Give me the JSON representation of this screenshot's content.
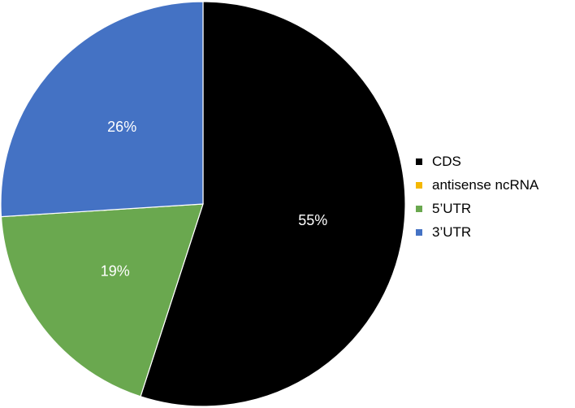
{
  "chart_data": {
    "type": "pie",
    "title": "",
    "categories": [
      "CDS",
      "antisense ncRNA",
      "5’UTR",
      "3’UTR"
    ],
    "values": [
      55,
      0,
      19,
      26
    ],
    "value_labels": [
      "55%",
      "",
      "19%",
      "26%"
    ],
    "colors": [
      "#000000",
      "#f5b800",
      "#6aa84f",
      "#4472c4"
    ],
    "legend_position": "right",
    "start_angle_deg": 0,
    "direction": "clockwise"
  }
}
